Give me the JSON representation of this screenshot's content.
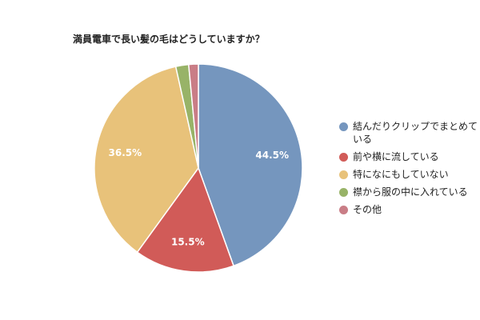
{
  "chart_data": {
    "type": "pie",
    "title": "満員電車で長い髪の毛はどうしていますか？",
    "legend_position": "right",
    "slices": [
      {
        "label": "結んだりクリップでまとめている",
        "value": 44.5,
        "value_label": "44.5%",
        "color": "#7596BE"
      },
      {
        "label": "前や横に流している",
        "value": 15.5,
        "value_label": "15.5%",
        "color": "#D15B58"
      },
      {
        "label": "特になにもしていない",
        "value": 36.5,
        "value_label": "36.5%",
        "color": "#E8C27A"
      },
      {
        "label": "襟から服の中に入れている",
        "value": 2.0,
        "value_label": "",
        "color": "#98B368"
      },
      {
        "label": "その他",
        "value": 1.5,
        "value_label": "",
        "color": "#C97D86"
      }
    ]
  }
}
